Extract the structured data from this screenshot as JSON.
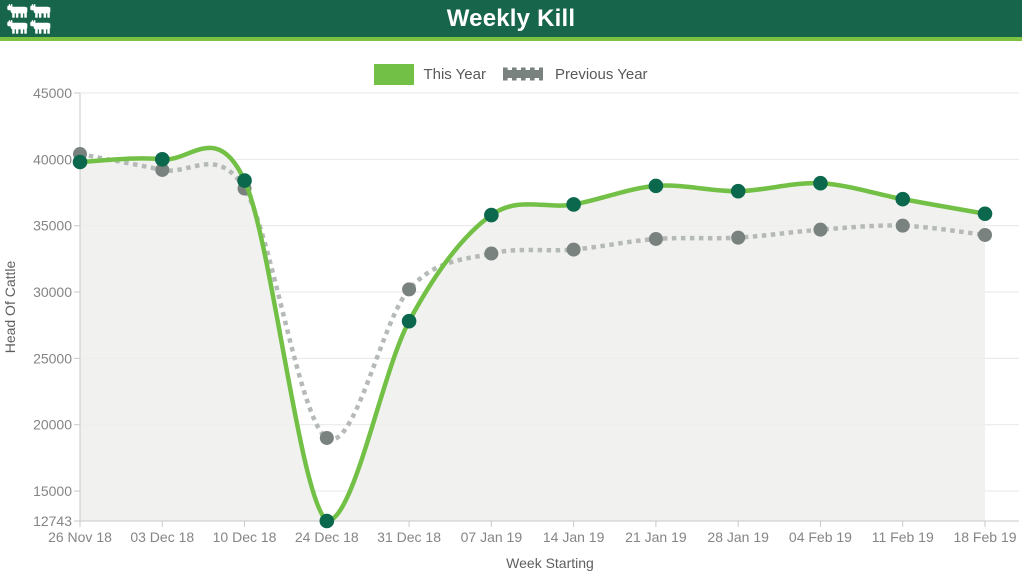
{
  "header": {
    "title": "Weekly Kill",
    "logo": "four-cattle-silhouettes",
    "colors": {
      "background": "#17654a",
      "accent_border": "#7cc142",
      "title_text": "#ffffff"
    }
  },
  "legend": {
    "position": "top-center",
    "items": [
      {
        "label": "This Year",
        "marker": "solid-green-rect"
      },
      {
        "label": "Previous Year",
        "marker": "dotted-gray-line"
      }
    ]
  },
  "chart_data": {
    "type": "line",
    "title": "Weekly Kill",
    "xlabel": "Week Starting",
    "ylabel": "Head Of Cattle",
    "categories": [
      "26 Nov 18",
      "03 Dec 18",
      "10 Dec 18",
      "24 Dec 18",
      "31 Dec 18",
      "07 Jan 19",
      "14 Jan 19",
      "21 Jan 19",
      "28 Jan 19",
      "04 Feb 19",
      "11 Feb 19",
      "18 Feb 19"
    ],
    "series": [
      {
        "name": "This Year",
        "style": "smooth solid line, dark-green round markers, light-gray area fill",
        "color": "#73c046",
        "marker_color": "#0b684d",
        "values": [
          39800,
          40000,
          38400,
          12743,
          27800,
          35800,
          36600,
          38000,
          37600,
          38200,
          37000,
          35900
        ]
      },
      {
        "name": "Previous Year",
        "style": "smooth dotted line, gray round markers, no fill",
        "color": "#b5bab7",
        "marker_color": "#79827e",
        "values": [
          40400,
          39200,
          37800,
          19000,
          30200,
          32900,
          33200,
          34000,
          34100,
          34700,
          35000,
          34300
        ]
      }
    ],
    "y_ticks": [
      45000,
      40000,
      35000,
      30000,
      25000,
      20000,
      15000,
      12743
    ],
    "ylim": [
      12743,
      45000
    ],
    "grid": "horizontal",
    "legend_position": "top-center",
    "colors": {
      "gridline": "#e7e7e7",
      "axis_line": "#c9c9c9",
      "area_fill": "#efefed",
      "tick_label": "#858585",
      "axis_title": "#5f5f5f",
      "legend_text": "#595959"
    }
  }
}
